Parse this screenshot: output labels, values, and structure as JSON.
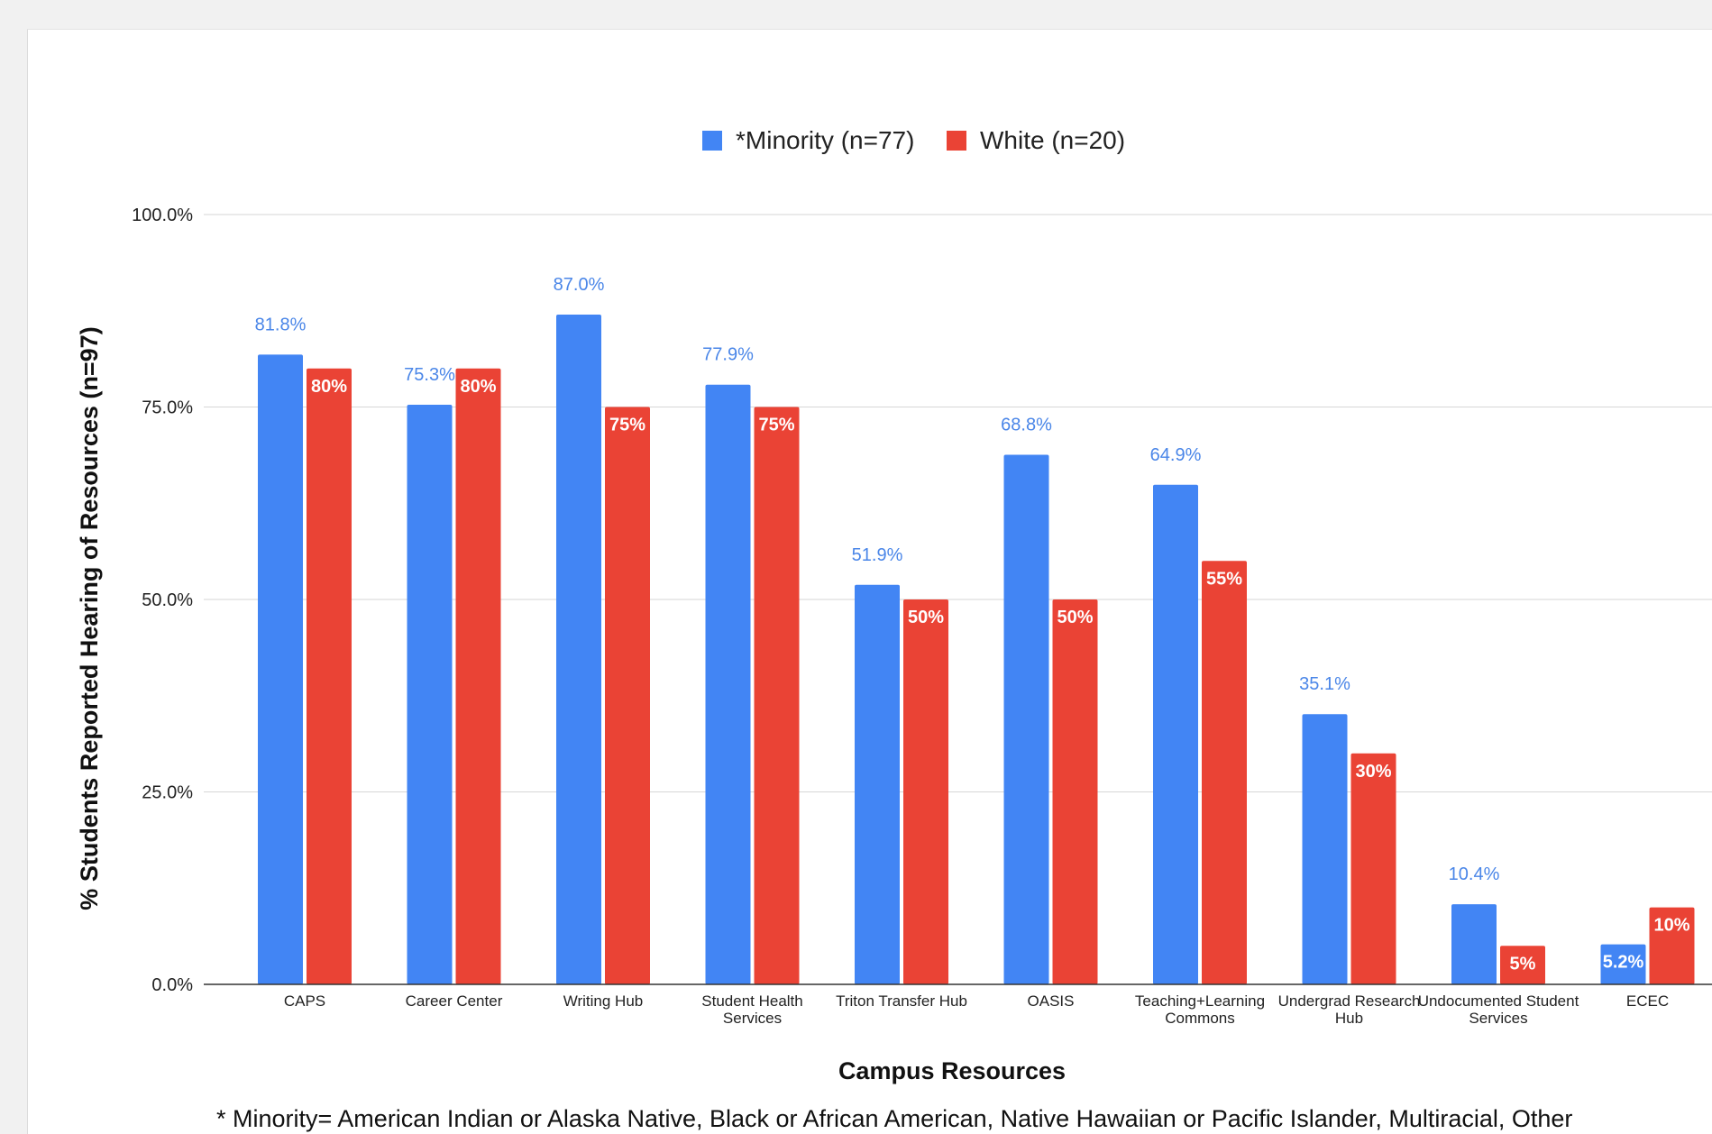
{
  "chart_data": {
    "type": "bar",
    "categories": [
      "CAPS",
      "Career Center",
      "Writing Hub",
      "Student Health Services",
      "Triton Transfer Hub",
      "OASIS",
      "Teaching+Learning Commons",
      "Undergrad Research Hub",
      "Undocumented Student Services",
      "ECEC"
    ],
    "series": [
      {
        "name": "*Minority (n=77)",
        "color": "#4285f4",
        "values": [
          81.8,
          75.3,
          87.0,
          77.9,
          51.9,
          68.8,
          64.9,
          35.1,
          10.4,
          5.2
        ],
        "labels": [
          "81.8%",
          "75.3%",
          "87.0%",
          "77.9%",
          "51.9%",
          "68.8%",
          "64.9%",
          "35.1%",
          "10.4%",
          "5.2%"
        ]
      },
      {
        "name": "White (n=20)",
        "color": "#ea4335",
        "values": [
          80,
          80,
          75,
          75,
          50,
          50,
          55,
          30,
          5,
          10
        ],
        "labels": [
          "80%",
          "80%",
          "75%",
          "75%",
          "50%",
          "50%",
          "55%",
          "30%",
          "5%",
          "10%"
        ]
      }
    ],
    "ylim": [
      0,
      100
    ],
    "yticks": [
      "0.0%",
      "25.0%",
      "50.0%",
      "75.0%",
      "100.0%"
    ],
    "xlabel": "Campus Resources",
    "ylabel": "% Students Reported Hearing of Resources (n=97)",
    "legend_position": "top",
    "grid": true,
    "note": "* Minority= American Indian or Alaska Native, Black or African American, Native Hawaiian or Pacific Islander, Multiracial, Other"
  }
}
